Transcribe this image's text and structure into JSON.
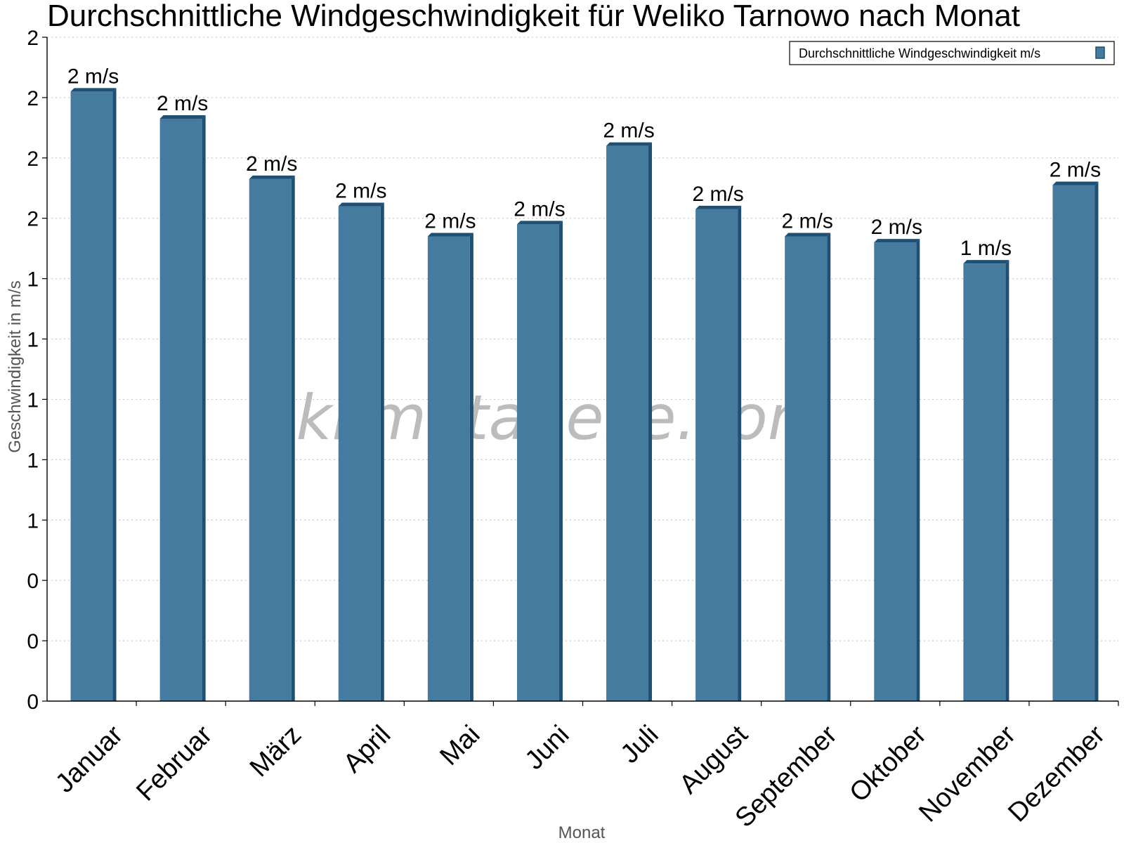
{
  "chart_data": {
    "type": "bar",
    "title": "Durchschnittliche Windgeschwindigkeit für Weliko Tarnowo nach Monat",
    "xlabel": "Monat",
    "ylabel": "Geschwindigkeit in m/s",
    "categories": [
      "Januar",
      "Februar",
      "März",
      "April",
      "Mai",
      "Juni",
      "Juli",
      "August",
      "September",
      "Oktober",
      "November",
      "Dezember"
    ],
    "series": [
      {
        "name": "Durchschnittliche Windgeschwindigkeit m/s",
        "values": [
          2.02,
          1.93,
          1.73,
          1.64,
          1.54,
          1.58,
          1.84,
          1.63,
          1.54,
          1.52,
          1.45,
          1.71
        ],
        "data_labels": [
          "2 m/s",
          "2 m/s",
          "2 m/s",
          "2 m/s",
          "2 m/s",
          "2 m/s",
          "2 m/s",
          "2 m/s",
          "2 m/s",
          "2 m/s",
          "1 m/s",
          "2 m/s"
        ],
        "color": "#467ba0",
        "side_color": "#1f4f72"
      }
    ],
    "ylim": [
      0,
      2.2
    ],
    "yticks": [
      0,
      0.2,
      0.4,
      0.6,
      0.8,
      1.0,
      1.2,
      1.4,
      1.6,
      1.8,
      2.0,
      2.2
    ],
    "ytick_labels": [
      "0",
      "0",
      "0",
      "1",
      "1",
      "1",
      "1",
      "1",
      "2",
      "2",
      "2",
      "2"
    ],
    "grid": true,
    "legend": "top-right"
  },
  "watermark": "klimatabelle.com"
}
